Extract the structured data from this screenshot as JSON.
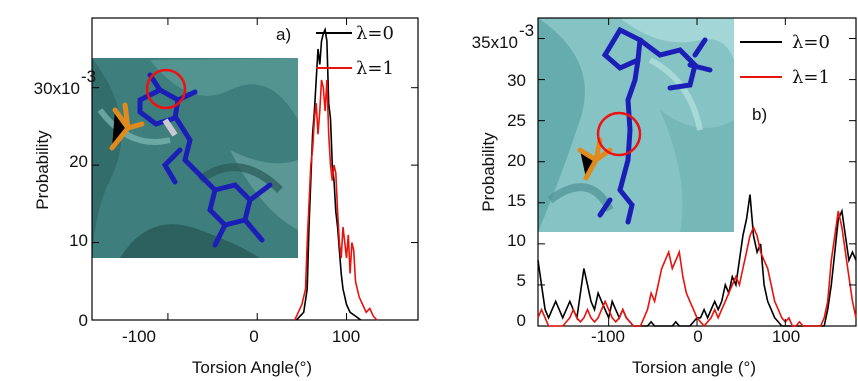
{
  "chart_data": [
    {
      "type": "line",
      "panel_label": "a)",
      "xlabel": "Torsion Angle(°)",
      "ylabel": "Probability",
      "xlim": [
        -185,
        180
      ],
      "ylim": [
        0,
        0.039
      ],
      "x_ticks": [
        -100,
        0,
        100
      ],
      "x_tick_labels": [
        "-100",
        "0",
        "100"
      ],
      "y_ticks": [
        0,
        0.01,
        0.02,
        0.03
      ],
      "y_tick_labels": [
        "0",
        "10",
        "20",
        "30x10"
      ],
      "y_exponent_label": "-3",
      "legend_position": "top-right",
      "series": [
        {
          "name": "λ=0",
          "color": "#000000",
          "x": [
            44,
            48,
            52,
            56,
            58,
            60,
            62,
            64,
            66,
            68,
            70,
            72,
            74,
            76,
            78,
            80,
            82,
            84,
            86,
            88,
            90,
            92,
            94,
            96,
            98,
            100,
            104,
            110,
            116
          ],
          "y": [
            0,
            0.0005,
            0.001,
            0.004,
            0.012,
            0.018,
            0.024,
            0.027,
            0.031,
            0.035,
            0.033,
            0.036,
            0.037,
            0.0375,
            0.036,
            0.028,
            0.026,
            0.02,
            0.018,
            0.014,
            0.012,
            0.009,
            0.006,
            0.004,
            0.003,
            0.002,
            0.001,
            0.0005,
            0
          ]
        },
        {
          "name": "λ=1",
          "color": "#e8130d",
          "x": [
            42,
            46,
            50,
            54,
            56,
            58,
            60,
            62,
            64,
            66,
            68,
            70,
            72,
            74,
            76,
            78,
            80,
            82,
            84,
            86,
            88,
            90,
            92,
            94,
            96,
            98,
            100,
            102,
            104,
            106,
            108,
            110,
            114,
            118,
            122,
            126,
            130,
            134
          ],
          "y": [
            0,
            0.001,
            0.002,
            0.004,
            0.01,
            0.015,
            0.02,
            0.022,
            0.026,
            0.028,
            0.024,
            0.027,
            0.031,
            0.03,
            0.027,
            0.031,
            0.024,
            0.02,
            0.018,
            0.02,
            0.019,
            0.014,
            0.01,
            0.008,
            0.012,
            0.01,
            0.008,
            0.011,
            0.006,
            0.01,
            0.009,
            0.005,
            0.003,
            0.002,
            0.001,
            0.0015,
            0.0005,
            0
          ]
        }
      ]
    },
    {
      "type": "line",
      "panel_label": "b)",
      "xlabel": "Torsion angle (°)",
      "ylabel": "Probability",
      "xlim": [
        -180,
        180
      ],
      "ylim": [
        0,
        0.0375
      ],
      "x_ticks": [
        -100,
        0,
        100
      ],
      "x_tick_labels": [
        "-100",
        "0",
        "100"
      ],
      "y_ticks": [
        0,
        0.005,
        0.01,
        0.015,
        0.02,
        0.025,
        0.03,
        0.035
      ],
      "y_tick_labels": [
        "0",
        "5",
        "10",
        "15",
        "20",
        "25",
        "30",
        "35x10"
      ],
      "y_exponent_label": "-3",
      "legend_position": "top-right",
      "series": [
        {
          "name": "λ=0",
          "color": "#000000",
          "x": [
            -180,
            -176,
            -172,
            -168,
            -164,
            -160,
            -156,
            -152,
            -148,
            -144,
            -140,
            -136,
            -132,
            -128,
            -124,
            -120,
            -116,
            -112,
            -108,
            -104,
            -100,
            -96,
            -92,
            -88,
            -84,
            -80,
            -76,
            -72,
            -68,
            -64,
            -60,
            -56,
            -52,
            -48,
            -44,
            -40,
            -36,
            -32,
            -28,
            -24,
            -20,
            -16,
            -12,
            -8,
            -4,
            0,
            4,
            8,
            12,
            16,
            20,
            24,
            28,
            32,
            36,
            40,
            44,
            48,
            52,
            56,
            60,
            64,
            68,
            72,
            76,
            80,
            84,
            88,
            92,
            96,
            100,
            104,
            108,
            112,
            116,
            120,
            124,
            128,
            132,
            136,
            140,
            144,
            148,
            152,
            156,
            160,
            164,
            168,
            172,
            176,
            180
          ],
          "y": [
            0.008,
            0.005,
            0.002,
            0.001,
            0.002,
            0.003,
            0.002,
            0.001,
            0.002,
            0.003,
            0.002,
            0.001,
            0.004,
            0.007,
            0.005,
            0.003,
            0.002,
            0.004,
            0.003,
            0.002,
            0.001,
            0.003,
            0.002,
            0.001,
            0.002,
            0.001,
            0.0005,
            0,
            0,
            0,
            0,
            0,
            0.0005,
            0,
            0,
            0,
            0,
            0,
            0,
            0.0005,
            0,
            0,
            0,
            0,
            0.0005,
            0.001,
            0.001,
            0.002,
            0.001,
            0.002,
            0.003,
            0.002,
            0.003,
            0.005,
            0.004,
            0.006,
            0.005,
            0.008,
            0.011,
            0.013,
            0.016,
            0.011,
            0.009,
            0.01,
            0.005,
            0.003,
            0.002,
            0.001,
            0.0005,
            0,
            0,
            0,
            0,
            0,
            0,
            0,
            0,
            0,
            0,
            0,
            0,
            0,
            0.002,
            0.005,
            0.009,
            0.013,
            0.014,
            0.011,
            0.008,
            0.009,
            0.008
          ]
        },
        {
          "name": "λ=1",
          "color": "#e8130d",
          "x": [
            -180,
            -176,
            -172,
            -168,
            -164,
            -160,
            -156,
            -152,
            -148,
            -144,
            -140,
            -136,
            -132,
            -128,
            -124,
            -120,
            -116,
            -112,
            -108,
            -104,
            -100,
            -96,
            -92,
            -88,
            -84,
            -80,
            -76,
            -72,
            -68,
            -64,
            -60,
            -56,
            -52,
            -48,
            -44,
            -40,
            -36,
            -32,
            -28,
            -24,
            -20,
            -16,
            -12,
            -8,
            -4,
            0,
            4,
            8,
            12,
            16,
            20,
            24,
            28,
            32,
            36,
            40,
            44,
            48,
            52,
            56,
            60,
            64,
            68,
            72,
            76,
            80,
            84,
            88,
            92,
            96,
            100,
            104,
            108,
            112,
            116,
            120,
            124,
            128,
            132,
            136,
            140,
            144,
            148,
            152,
            156,
            160,
            164,
            168,
            172,
            176,
            180
          ],
          "y": [
            0.001,
            0.002,
            0.001,
            0,
            0,
            0,
            0,
            0,
            0.0005,
            0.001,
            0.002,
            0.001,
            0.0005,
            0.001,
            0.002,
            0.001,
            0.0005,
            0.001,
            0.002,
            0.003,
            0.002,
            0.001,
            0.0005,
            0.001,
            0.002,
            0.001,
            0.0005,
            0,
            0,
            0,
            0.001,
            0.002,
            0.004,
            0.003,
            0.005,
            0.007,
            0.008,
            0.009,
            0.007,
            0.008,
            0.009,
            0.006,
            0.004,
            0.003,
            0.002,
            0.001,
            0.0005,
            0,
            0.0005,
            0.001,
            0.002,
            0.001,
            0.002,
            0.003,
            0.004,
            0.005,
            0.006,
            0.005,
            0.007,
            0.009,
            0.011,
            0.012,
            0.011,
            0.009,
            0.008,
            0.007,
            0.005,
            0.003,
            0.002,
            0.001,
            0.0005,
            0.001,
            0,
            0,
            0.0005,
            0,
            0,
            0,
            0,
            0,
            0,
            0.001,
            0.003,
            0.008,
            0.011,
            0.014,
            0.012,
            0.009,
            0.006,
            0.003,
            0.001
          ]
        }
      ]
    }
  ]
}
